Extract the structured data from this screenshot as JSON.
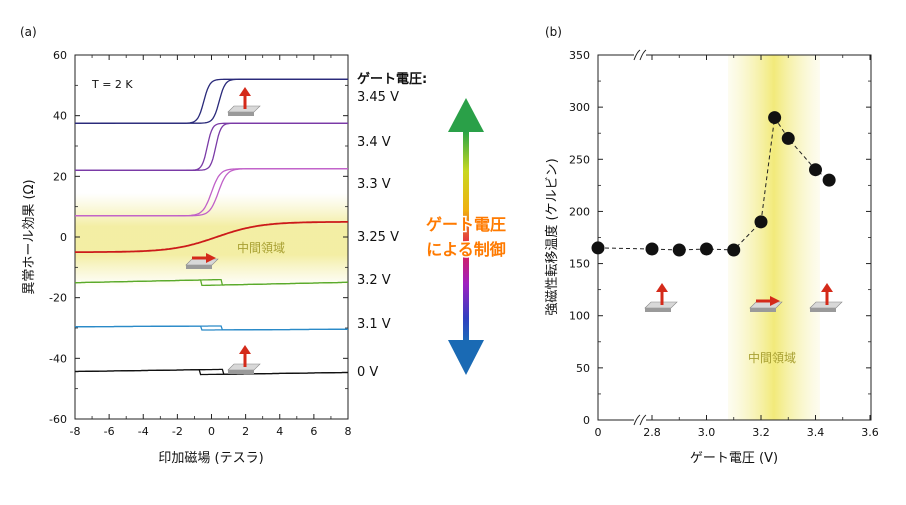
{
  "chart_data": [
    {
      "type": "line",
      "panel_label": "(a)",
      "xlabel": "印加磁場 (テスラ)",
      "ylabel": "異常ホール効果 (Ω)",
      "xlim": [
        -8,
        8
      ],
      "ylim": [
        -60,
        60
      ],
      "x_ticks": [
        "-8",
        "-6",
        "-4",
        "-2",
        "0",
        "2",
        "4",
        "6",
        "8"
      ],
      "y_ticks": [
        "-60",
        "-40",
        "-20",
        "0",
        "20",
        "40",
        "60"
      ],
      "annotation_temp": "T = 2 K",
      "legend_title": "ゲート電圧:",
      "intermediate_label": "中間領域",
      "center_arrow_text_line1": "ゲート電圧",
      "center_arrow_text_line2": "による制御",
      "series": [
        {
          "name": "3.45 V",
          "color": "#2a2a7a",
          "kind": "step",
          "low": 37.5,
          "high": 52,
          "center": 0,
          "width": 0.35,
          "hyst": 0.45
        },
        {
          "name": "3.4 V",
          "color": "#7a3aa6",
          "kind": "step",
          "low": 22,
          "high": 37.5,
          "center": 0,
          "width": 0.3,
          "hyst": 0.25
        },
        {
          "name": "3.3 V",
          "color": "#c060c8",
          "kind": "step",
          "low": 7,
          "high": 22.5,
          "center": 0.2,
          "width": 0.5,
          "hyst": 0.2
        },
        {
          "name": "3.25 V",
          "color": "#cc1a1a",
          "kind": "smooth",
          "low": -5,
          "high": 5,
          "center": 0.3,
          "width": 2.6,
          "hyst": 0
        },
        {
          "name": "3.2 V",
          "color": "#5aaa2a",
          "kind": "slope",
          "y0": -15,
          "slope": 0.12,
          "jump": 1.8,
          "loop": 0.6
        },
        {
          "name": "3.1 V",
          "color": "#2a8ac8",
          "kind": "slope",
          "y0": -30,
          "slope": 0.03,
          "jump": 1.3,
          "loop": 0.6
        },
        {
          "name": "0 V",
          "color": "#111111",
          "kind": "slope",
          "y0": -44.5,
          "slope": 0.08,
          "jump": 1.6,
          "loop": 0.7
        }
      ]
    },
    {
      "type": "scatter",
      "panel_label": "(b)",
      "xlabel": "ゲート電圧 (V)",
      "ylabel": "強磁性転移温度 (ケルビン)",
      "ylim": [
        0,
        350
      ],
      "x_ticks": [
        "0",
        "2.8",
        "3.0",
        "3.2",
        "3.4",
        "3.6"
      ],
      "y_ticks": [
        "0",
        "50",
        "100",
        "150",
        "200",
        "250",
        "300",
        "350"
      ],
      "intermediate_label": "中間領域",
      "x": [
        0,
        2.8,
        2.9,
        3.0,
        3.1,
        3.2,
        3.25,
        3.3,
        3.4,
        3.45
      ],
      "values": [
        165,
        164,
        163,
        164,
        163,
        190,
        290,
        270,
        240,
        230
      ]
    }
  ]
}
